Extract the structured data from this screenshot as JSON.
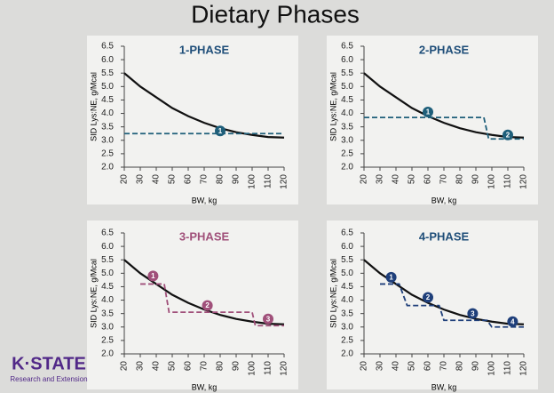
{
  "title": "Dietary Phases",
  "logo": "K·STATE",
  "logo_sub": "Research and Extension",
  "chart_data": [
    {
      "type": "line",
      "title": "1-PHASE",
      "title_color": "#1f4e79",
      "y_label": "SID Lys:NE, g/Mcal",
      "x_label": "BW, kg",
      "xlim": [
        20,
        120
      ],
      "xticks": [
        20,
        30,
        40,
        50,
        60,
        70,
        80,
        90,
        100,
        110,
        120
      ],
      "ylim": [
        2,
        6.5
      ],
      "yticks": [
        {
          "value": 2,
          "label": "2.0"
        },
        {
          "value": 2.5,
          "label": "2.5"
        },
        {
          "value": 3,
          "label": "3.0"
        },
        {
          "value": 3.5,
          "label": "3.5"
        },
        {
          "value": 4,
          "label": "4.0"
        },
        {
          "value": 4.5,
          "label": "4.5"
        },
        {
          "value": 5,
          "label": "5.0"
        },
        {
          "value": 5.5,
          "label": "5.5"
        },
        {
          "value": 6,
          "label": "6.0"
        },
        {
          "value": 6.5,
          "label": "6.5"
        }
      ],
      "series": [
        {
          "color": "#111111",
          "x": [
            20,
            30,
            40,
            50,
            60,
            70,
            80,
            90,
            100,
            110,
            120
          ],
          "values": [
            5.5,
            5.0,
            4.6,
            4.2,
            3.9,
            3.65,
            3.45,
            3.3,
            3.2,
            3.12,
            3.1
          ]
        },
        {
          "color": "#1f5f7a",
          "dashed": true,
          "x": [
            20,
            120
          ],
          "values": [
            3.25,
            3.25
          ]
        }
      ],
      "annotations": [
        {
          "label": "1",
          "x": 80,
          "y": 3.35,
          "color": "#1f5f7a"
        }
      ]
    },
    {
      "type": "line",
      "title": "2-PHASE",
      "title_color": "#1f4e79",
      "y_label": "SID Lys:NE, g/Mcal",
      "x_label": "BW, kg",
      "xlim": [
        20,
        120
      ],
      "xticks": [
        20,
        30,
        40,
        50,
        60,
        70,
        80,
        90,
        100,
        110,
        120
      ],
      "ylim": [
        2,
        6.5
      ],
      "yticks": [
        {
          "value": 2,
          "label": "2.0"
        },
        {
          "value": 2.5,
          "label": "2.5"
        },
        {
          "value": 3,
          "label": "3.0"
        },
        {
          "value": 3.5,
          "label": "3.5"
        },
        {
          "value": 4,
          "label": "4.0"
        },
        {
          "value": 4.5,
          "label": "4.5"
        },
        {
          "value": 5,
          "label": "5.0"
        },
        {
          "value": 5.5,
          "label": "5.5"
        },
        {
          "value": 6,
          "label": "6.0"
        },
        {
          "value": 6.5,
          "label": "6.5"
        }
      ],
      "series": [
        {
          "color": "#111111",
          "x": [
            20,
            30,
            40,
            50,
            60,
            70,
            80,
            90,
            100,
            110,
            120
          ],
          "values": [
            5.5,
            5.0,
            4.6,
            4.2,
            3.9,
            3.65,
            3.45,
            3.3,
            3.2,
            3.12,
            3.1
          ]
        },
        {
          "color": "#1f5f7a",
          "dashed": true,
          "x": [
            20,
            95,
            98,
            120
          ],
          "values": [
            3.85,
            3.85,
            3.05,
            3.05
          ]
        }
      ],
      "annotations": [
        {
          "label": "1",
          "x": 60,
          "y": 4.05,
          "color": "#1f5f7a"
        },
        {
          "label": "2",
          "x": 110,
          "y": 3.2,
          "color": "#1f5f7a"
        }
      ]
    },
    {
      "type": "line",
      "title": "3-PHASE",
      "title_color": "#a0507a",
      "y_label": "SID Lys:NE, g/Mcal",
      "x_label": "BW, kg",
      "xlim": [
        20,
        120
      ],
      "xticks": [
        20,
        30,
        40,
        50,
        60,
        70,
        80,
        90,
        100,
        110,
        120
      ],
      "ylim": [
        2,
        6.5
      ],
      "yticks": [
        {
          "value": 2,
          "label": "2.0"
        },
        {
          "value": 2.5,
          "label": "2.5"
        },
        {
          "value": 3,
          "label": "3.0"
        },
        {
          "value": 3.5,
          "label": "3.5"
        },
        {
          "value": 4,
          "label": "4.0"
        },
        {
          "value": 4.5,
          "label": "4.5"
        },
        {
          "value": 5,
          "label": "5.0"
        },
        {
          "value": 5.5,
          "label": "5.5"
        },
        {
          "value": 6,
          "label": "6.0"
        },
        {
          "value": 6.5,
          "label": "6.5"
        }
      ],
      "series": [
        {
          "color": "#111111",
          "x": [
            20,
            30,
            40,
            50,
            60,
            70,
            80,
            90,
            100,
            110,
            120
          ],
          "values": [
            5.5,
            5.0,
            4.6,
            4.2,
            3.9,
            3.65,
            3.45,
            3.3,
            3.2,
            3.12,
            3.1
          ]
        },
        {
          "color": "#a0507a",
          "dashed": true,
          "x": [
            30,
            45,
            48,
            100,
            102,
            120
          ],
          "values": [
            4.6,
            4.6,
            3.55,
            3.55,
            3.05,
            3.05
          ]
        }
      ],
      "annotations": [
        {
          "label": "1",
          "x": 38,
          "y": 4.9,
          "color": "#a0507a"
        },
        {
          "label": "2",
          "x": 72,
          "y": 3.8,
          "color": "#a0507a"
        },
        {
          "label": "3",
          "x": 110,
          "y": 3.3,
          "color": "#a0507a"
        }
      ]
    },
    {
      "type": "line",
      "title": "4-PHASE",
      "title_color": "#1f4e79",
      "y_label": "SID Lys:NE, g/Mcal",
      "x_label": "BW, kg",
      "xlim": [
        20,
        120
      ],
      "xticks": [
        20,
        30,
        40,
        50,
        60,
        70,
        80,
        90,
        100,
        110,
        120
      ],
      "ylim": [
        2,
        6.5
      ],
      "yticks": [
        {
          "value": 2,
          "label": "2.0"
        },
        {
          "value": 2.5,
          "label": "2.5"
        },
        {
          "value": 3,
          "label": "3.0"
        },
        {
          "value": 3.5,
          "label": "3.5"
        },
        {
          "value": 4,
          "label": "4.0"
        },
        {
          "value": 4.5,
          "label": "4.5"
        },
        {
          "value": 5,
          "label": "5.0"
        },
        {
          "value": 5.5,
          "label": "5.5"
        },
        {
          "value": 6,
          "label": "6.0"
        },
        {
          "value": 6.5,
          "label": "6.5"
        }
      ],
      "series": [
        {
          "color": "#111111",
          "x": [
            20,
            30,
            40,
            50,
            60,
            70,
            80,
            90,
            100,
            110,
            120
          ],
          "values": [
            5.5,
            5.0,
            4.6,
            4.2,
            3.9,
            3.65,
            3.45,
            3.3,
            3.2,
            3.12,
            3.1
          ]
        },
        {
          "color": "#1f3f7a",
          "dashed": true,
          "x": [
            30,
            42,
            47,
            67,
            70,
            97,
            100,
            120
          ],
          "values": [
            4.6,
            4.6,
            3.8,
            3.8,
            3.25,
            3.25,
            3.0,
            3.0
          ]
        }
      ],
      "annotations": [
        {
          "label": "1",
          "x": 37,
          "y": 4.85,
          "color": "#1f3f7a"
        },
        {
          "label": "2",
          "x": 60,
          "y": 4.1,
          "color": "#1f3f7a"
        },
        {
          "label": "3",
          "x": 88,
          "y": 3.5,
          "color": "#1f3f7a"
        },
        {
          "label": "4",
          "x": 113,
          "y": 3.2,
          "color": "#1f3f7a"
        }
      ]
    }
  ]
}
